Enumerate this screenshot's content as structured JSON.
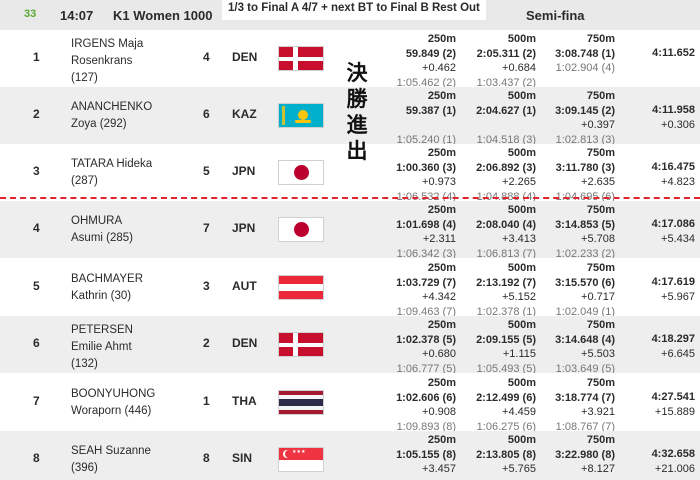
{
  "header": {
    "race_no": "33",
    "time": "14:07",
    "event": "K1 Women 1000",
    "qualification": "1/3 to Final A 4/7 + next BT to Final B Rest Out",
    "phase": "Semi-fina"
  },
  "banner_text": "決勝進出",
  "split_labels": [
    "250m",
    "500m",
    "750m"
  ],
  "rows": [
    {
      "rank": "1",
      "name1": "IRGENS Maja",
      "name2": "Rosenkrans",
      "name3": "(127)",
      "lane": "4",
      "nat": "DEN",
      "s1": {
        "time": "59.849 (2)",
        "gap": "+0.462",
        "sec": "1:05.462 (2)"
      },
      "s2": {
        "time": "2:05.311 (2)",
        "gap": "+0.684",
        "sec": "1:03.437 (2)"
      },
      "s3": {
        "time": "3:08.748 (1)",
        "gap": "",
        "sec": "1:02.904 (4)"
      },
      "fin": {
        "time": "4:11.652",
        "gap": ""
      }
    },
    {
      "rank": "2",
      "name1": "ANANCHENKO",
      "name2": "Zoya (292)",
      "name3": "",
      "lane": "6",
      "nat": "KAZ",
      "s1": {
        "time": "59.387 (1)",
        "gap": "",
        "sec": "1:05.240 (1)"
      },
      "s2": {
        "time": "2:04.627 (1)",
        "gap": "",
        "sec": "1:04.518 (3)"
      },
      "s3": {
        "time": "3:09.145 (2)",
        "gap": "+0.397",
        "sec": "1:02.813 (3)"
      },
      "fin": {
        "time": "4:11.958",
        "gap": "+0.306"
      }
    },
    {
      "rank": "3",
      "name1": "TATARA Hideka",
      "name2": "(287)",
      "name3": "",
      "lane": "5",
      "nat": "JPN",
      "s1": {
        "time": "1:00.360 (3)",
        "gap": "+0.973",
        "sec": "1:06.532 (4)"
      },
      "s2": {
        "time": "2:06.892 (3)",
        "gap": "+2.265",
        "sec": "1:04.888 (4)"
      },
      "s3": {
        "time": "3:11.780 (3)",
        "gap": "+2.635",
        "sec": "1:04.695 (6)"
      },
      "fin": {
        "time": "4:16.475",
        "gap": "+4.823"
      }
    },
    {
      "rank": "4",
      "name1": "OHMURA",
      "name2": "Asumi (285)",
      "name3": "",
      "lane": "7",
      "nat": "JPN",
      "s1": {
        "time": "1:01.698 (4)",
        "gap": "+2.311",
        "sec": "1:06.342 (3)"
      },
      "s2": {
        "time": "2:08.040 (4)",
        "gap": "+3.413",
        "sec": "1:06.813 (7)"
      },
      "s3": {
        "time": "3:14.853 (5)",
        "gap": "+5.708",
        "sec": "1:02.233 (2)"
      },
      "fin": {
        "time": "4:17.086",
        "gap": "+5.434"
      }
    },
    {
      "rank": "5",
      "name1": "BACHMAYER",
      "name2": "Kathrin (30)",
      "name3": "",
      "lane": "3",
      "nat": "AUT",
      "s1": {
        "time": "1:03.729 (7)",
        "gap": "+4.342",
        "sec": "1:09.463 (7)"
      },
      "s2": {
        "time": "2:13.192 (7)",
        "gap": "+5.152",
        "sec": "1:02.378 (1)"
      },
      "s3": {
        "time": "3:15.570 (6)",
        "gap": "+0.717",
        "sec": "1:02.049 (1)"
      },
      "fin": {
        "time": "4:17.619",
        "gap": "+5.967"
      }
    },
    {
      "rank": "6",
      "name1": "PETERSEN",
      "name2": "Emilie Ahmt",
      "name3": "(132)",
      "lane": "2",
      "nat": "DEN",
      "s1": {
        "time": "1:02.378 (5)",
        "gap": "+0.680",
        "sec": "1:06.777 (5)"
      },
      "s2": {
        "time": "2:09.155 (5)",
        "gap": "+1.115",
        "sec": "1:05.493 (5)"
      },
      "s3": {
        "time": "3:14.648 (4)",
        "gap": "+5.503",
        "sec": "1:03.649 (5)"
      },
      "fin": {
        "time": "4:18.297",
        "gap": "+6.645"
      }
    },
    {
      "rank": "7",
      "name1": "BOONYUHONG",
      "name2": "Woraporn (446)",
      "name3": "",
      "lane": "1",
      "nat": "THA",
      "s1": {
        "time": "1:02.606 (6)",
        "gap": "+0.908",
        "sec": "1:09.893 (8)"
      },
      "s2": {
        "time": "2:12.499 (6)",
        "gap": "+4.459",
        "sec": "1:06.275 (6)"
      },
      "s3": {
        "time": "3:18.774 (7)",
        "gap": "+3.921",
        "sec": "1:08.767 (7)"
      },
      "fin": {
        "time": "4:27.541",
        "gap": "+15.889"
      }
    },
    {
      "rank": "8",
      "name1": "SEAH Suzanne",
      "name2": "(396)",
      "name3": "",
      "lane": "8",
      "nat": "SIN",
      "s1": {
        "time": "1:05.155 (8)",
        "gap": "+3.457",
        "sec": ""
      },
      "s2": {
        "time": "2:13.805 (8)",
        "gap": "+5.765",
        "sec": ""
      },
      "s3": {
        "time": "3:22.980 (8)",
        "gap": "+8.127",
        "sec": ""
      },
      "fin": {
        "time": "4:32.658",
        "gap": "+21.006"
      }
    }
  ]
}
